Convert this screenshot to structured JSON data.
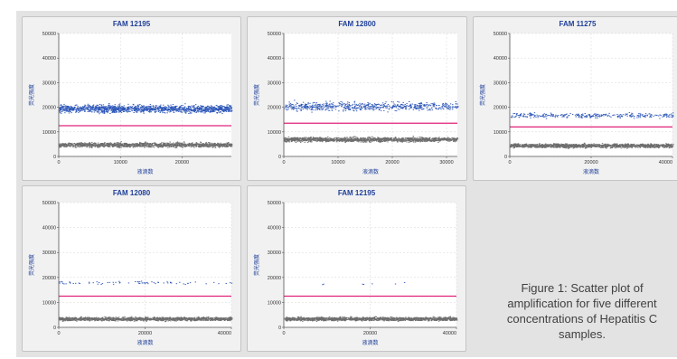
{
  "caption": "Figure 1: Scatter plot of amplification for five different concentrations of Hepatitis C samples.",
  "colors": {
    "positive": "#2c56b8",
    "negative": "#6e6e6e",
    "threshold": "#e0207a",
    "title": "#1f3f99"
  },
  "chart_data": [
    {
      "type": "scatter",
      "title": "FAM 12195",
      "xlabel": "液滴数",
      "ylabel": "荧光强度",
      "xlim": [
        0,
        28000
      ],
      "ylim": [
        0,
        50000
      ],
      "xticks": [
        0,
        10000,
        20000
      ],
      "yticks": [
        0,
        10000,
        20000,
        30000,
        40000,
        50000
      ],
      "threshold": 12500,
      "grid": true,
      "series": [
        {
          "y_center": 19500,
          "spread": 1500,
          "density": "very high"
        },
        {
          "y_center": 4800,
          "spread": 900,
          "density": "very high"
        }
      ]
    },
    {
      "type": "scatter",
      "title": "FAM 12800",
      "xlabel": "液滴数",
      "ylabel": "荧光强度",
      "xlim": [
        0,
        32000
      ],
      "ylim": [
        0,
        50000
      ],
      "xticks": [
        0,
        10000,
        20000,
        30000
      ],
      "yticks": [
        0,
        10000,
        20000,
        30000,
        40000,
        50000
      ],
      "threshold": 13500,
      "grid": true,
      "series": [
        {
          "y_center": 20500,
          "spread": 1700,
          "density": "high"
        },
        {
          "y_center": 7000,
          "spread": 900,
          "density": "very high"
        }
      ]
    },
    {
      "type": "scatter",
      "title": "FAM 11275",
      "xlabel": "液滴数",
      "ylabel": "荧光强度",
      "xlim": [
        0,
        40000
      ],
      "ylim": [
        0,
        50000
      ],
      "xticks": [
        0,
        20000,
        40000
      ],
      "yticks": [
        0,
        10000,
        20000,
        30000,
        40000,
        50000
      ],
      "threshold": 12000,
      "grid": true,
      "series": [
        {
          "y_center": 16800,
          "spread": 1000,
          "density": "medium"
        },
        {
          "y_center": 4500,
          "spread": 800,
          "density": "very high"
        }
      ]
    },
    {
      "type": "scatter",
      "title": "FAM 12080",
      "xlabel": "液滴数",
      "ylabel": "荧光强度",
      "xlim": [
        0,
        40000
      ],
      "ylim": [
        0,
        50000
      ],
      "xticks": [
        0,
        20000,
        40000
      ],
      "yticks": [
        0,
        10000,
        20000,
        30000,
        40000,
        50000
      ],
      "threshold": 12500,
      "grid": true,
      "series": [
        {
          "y_center": 18000,
          "spread": 600,
          "density": "low"
        },
        {
          "y_center": 3500,
          "spread": 700,
          "density": "very high"
        }
      ]
    },
    {
      "type": "scatter",
      "title": "FAM 12195",
      "xlabel": "液滴数",
      "ylabel": "荧光强度",
      "xlim": [
        0,
        40000
      ],
      "ylim": [
        0,
        50000
      ],
      "xticks": [
        0,
        20000,
        40000
      ],
      "yticks": [
        0,
        10000,
        20000,
        30000,
        40000,
        50000
      ],
      "threshold": 12500,
      "grid": true,
      "series": [
        {
          "y_center": 17500,
          "spread": 600,
          "density": "very low"
        },
        {
          "y_center": 3500,
          "spread": 700,
          "density": "very high"
        }
      ]
    }
  ]
}
